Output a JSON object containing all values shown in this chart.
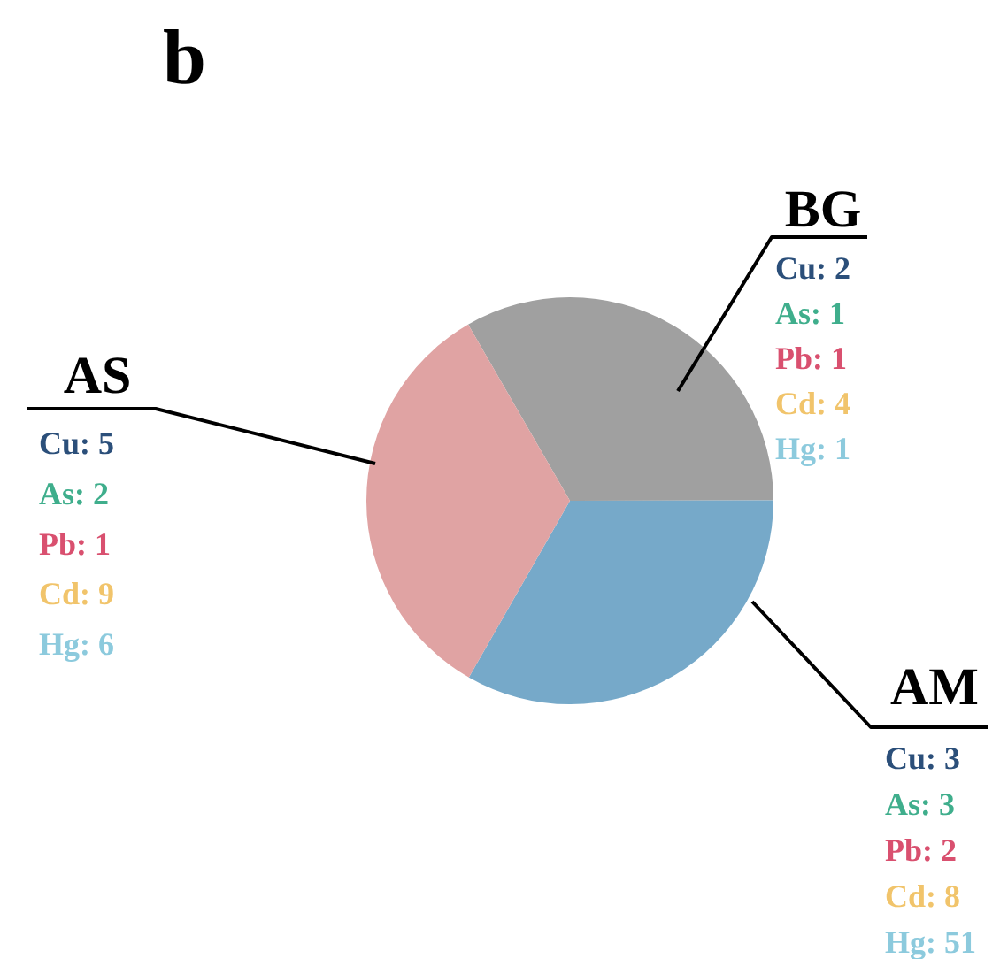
{
  "chart_data": {
    "type": "pie",
    "title": "b",
    "categories": [
      "BG",
      "AM",
      "AS"
    ],
    "values": [
      33.3,
      33.3,
      33.4
    ],
    "colors": [
      "#a0a0a0",
      "#76a9c9",
      "#e0a3a3"
    ],
    "annotations": [
      {
        "text": "Cu: 2",
        "x": "BG"
      },
      {
        "text": "As: 1",
        "x": "BG"
      },
      {
        "text": "Pb: 1",
        "x": "BG"
      },
      {
        "text": "Cd: 4",
        "x": "BG"
      },
      {
        "text": "Hg: 1",
        "x": "BG"
      },
      {
        "text": "Cu: 3",
        "x": "AM"
      },
      {
        "text": "As: 3",
        "x": "AM"
      },
      {
        "text": "Pb: 2",
        "x": "AM"
      },
      {
        "text": "Cd: 8",
        "x": "AM"
      },
      {
        "text": "Hg: 51",
        "x": "AM"
      },
      {
        "text": "Cu: 5",
        "x": "AS"
      },
      {
        "text": "As: 2",
        "x": "AS"
      },
      {
        "text": "Pb: 1",
        "x": "AS"
      },
      {
        "text": "Cd: 9",
        "x": "AS"
      },
      {
        "text": "Hg: 6",
        "x": "AS"
      }
    ]
  }
}
